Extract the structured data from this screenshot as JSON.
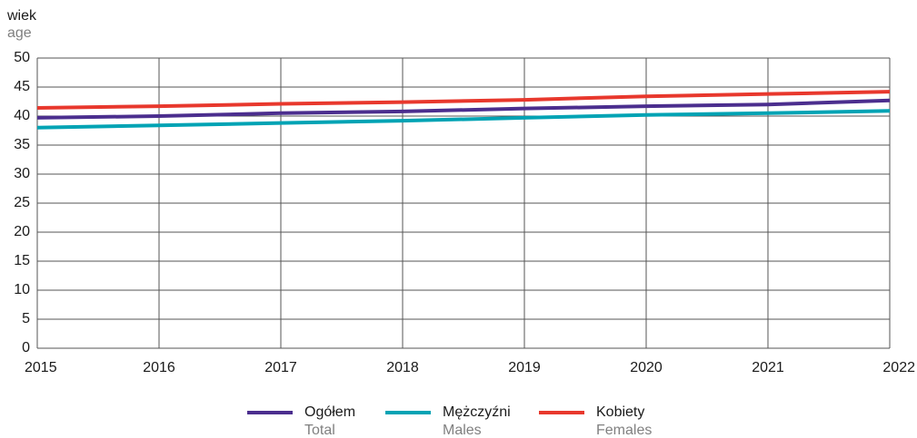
{
  "chart_data": {
    "type": "line",
    "y_label": "wiek",
    "y_label_en": "age",
    "x": [
      2015,
      2016,
      2017,
      2018,
      2019,
      2020,
      2021,
      2022
    ],
    "xlim": [
      2015,
      2022
    ],
    "xticks": [
      2015,
      2016,
      2017,
      2018,
      2019,
      2020,
      2021,
      2022
    ],
    "ylim": [
      0,
      50
    ],
    "yticks": [
      0,
      5,
      10,
      15,
      20,
      25,
      30,
      35,
      40,
      45,
      50
    ],
    "grid": true,
    "legend": "bottom",
    "series": [
      {
        "name": "Ogółem",
        "name_en": "Total",
        "color": "#4b2e8e",
        "values": [
          39.7,
          40.0,
          40.5,
          40.8,
          41.3,
          41.7,
          42.0,
          42.7
        ]
      },
      {
        "name": "Mężczyźni",
        "name_en": "Males",
        "color": "#00a3b4",
        "values": [
          38.0,
          38.4,
          38.8,
          39.2,
          39.7,
          40.2,
          40.5,
          40.9
        ]
      },
      {
        "name": "Kobiety",
        "name_en": "Females",
        "color": "#e8382d",
        "values": [
          41.4,
          41.7,
          42.1,
          42.4,
          42.8,
          43.4,
          43.8,
          44.2
        ]
      }
    ]
  }
}
